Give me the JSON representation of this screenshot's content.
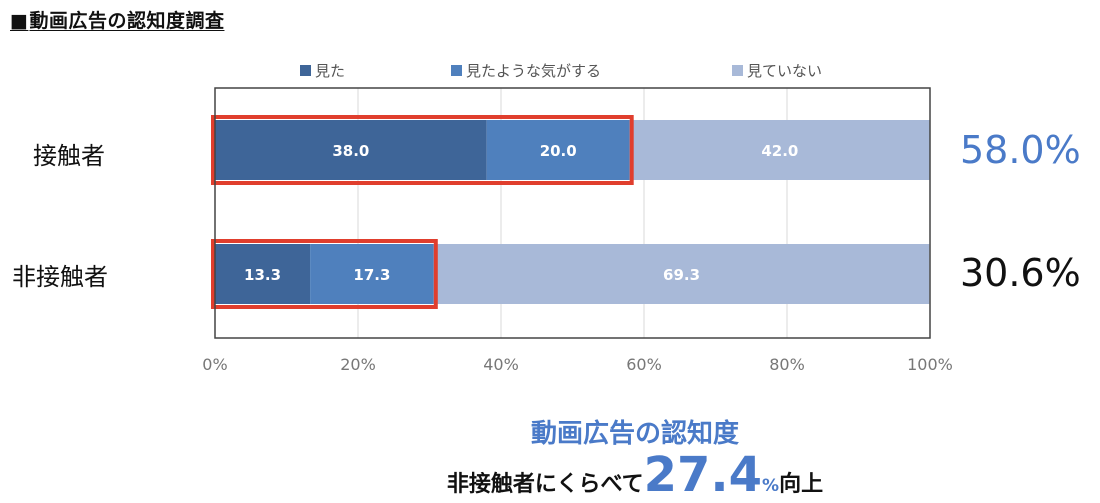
{
  "page": {
    "title_marker": "■",
    "title": "動画広告の認知度調査"
  },
  "chart_data": {
    "type": "bar",
    "orientation": "horizontal",
    "stacked": true,
    "normalized_100pct": true,
    "categories": [
      "接触者",
      "非接触者"
    ],
    "series": [
      {
        "name": "見た",
        "values": [
          38.0,
          13.3
        ],
        "color": "#3e6598"
      },
      {
        "name": "見たような気がする",
        "values": [
          20.0,
          17.3
        ],
        "color": "#4f80bd"
      },
      {
        "name": "見ていない",
        "values": [
          42.0,
          69.3
        ],
        "color": "#a8b9d8"
      }
    ],
    "xlim": [
      0,
      100
    ],
    "xticks": [
      "0%",
      "20%",
      "40%",
      "60%",
      "80%",
      "100%"
    ],
    "grid": true,
    "legend_position": "top",
    "highlight_color": "#e03e2d",
    "totals": [
      {
        "label": "58.0%",
        "color": "#4a7ac8"
      },
      {
        "label": "30.6%",
        "color": "#111111"
      }
    ]
  },
  "summary": {
    "title": "動画広告の認知度",
    "prefix": "非接触者にくらべて",
    "value": "27.4",
    "unit": "%",
    "suffix": "向上"
  }
}
